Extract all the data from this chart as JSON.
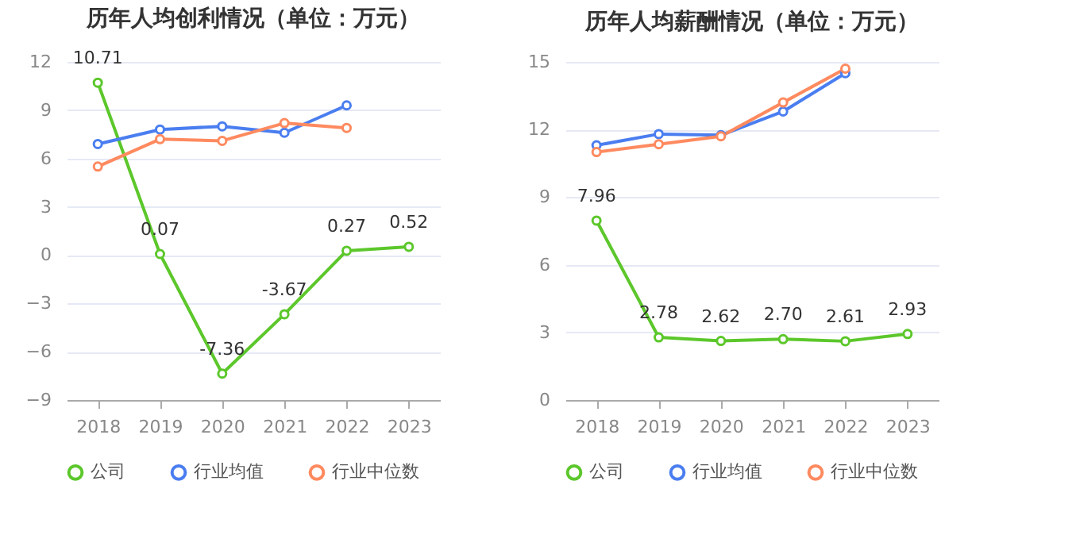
{
  "chart_data": [
    {
      "type": "line",
      "title": "历年人均创利情况（单位：万元）",
      "categories": [
        "2018",
        "2019",
        "2020",
        "2021",
        "2022",
        "2023"
      ],
      "ylim": [
        -9,
        12
      ],
      "yticks": [
        -9,
        -6,
        -3,
        0,
        3,
        6,
        9,
        12
      ],
      "grid": "y",
      "legend": "bottom",
      "marker": "circle",
      "line_style": "solid",
      "series": [
        {
          "name": "公司",
          "color": "#5cc72b",
          "values": [
            10.71,
            0.07,
            -7.36,
            -3.67,
            0.27,
            0.52
          ],
          "value_labels": [
            "10.71",
            "0.07",
            "-7.36",
            "-3.67",
            "0.27",
            "0.52"
          ]
        },
        {
          "name": "行业均值",
          "color": "#4a7ef0",
          "values": [
            6.9,
            7.8,
            8.0,
            7.6,
            9.3,
            null
          ]
        },
        {
          "name": "行业中位数",
          "color": "#ff8a5f",
          "values": [
            5.5,
            7.2,
            7.1,
            8.2,
            7.9,
            null
          ]
        }
      ]
    },
    {
      "type": "line",
      "title": "历年人均薪酬情况（单位：万元）",
      "categories": [
        "2018",
        "2019",
        "2020",
        "2021",
        "2022",
        "2023"
      ],
      "ylim": [
        0,
        15
      ],
      "yticks": [
        0,
        3,
        6,
        9,
        12,
        15
      ],
      "grid": "y",
      "legend": "bottom",
      "marker": "circle",
      "line_style": "solid",
      "series": [
        {
          "name": "公司",
          "color": "#5cc72b",
          "values": [
            7.96,
            2.78,
            2.62,
            2.7,
            2.61,
            2.93
          ],
          "value_labels": [
            "7.96",
            "2.78",
            "2.62",
            "2.70",
            "2.61",
            "2.93"
          ]
        },
        {
          "name": "行业均值",
          "color": "#4a7ef0",
          "values": [
            11.3,
            11.8,
            11.75,
            12.8,
            14.5,
            null
          ]
        },
        {
          "name": "行业中位数",
          "color": "#ff8a5f",
          "values": [
            11.0,
            11.35,
            11.7,
            13.2,
            14.7,
            null
          ]
        }
      ]
    }
  ]
}
